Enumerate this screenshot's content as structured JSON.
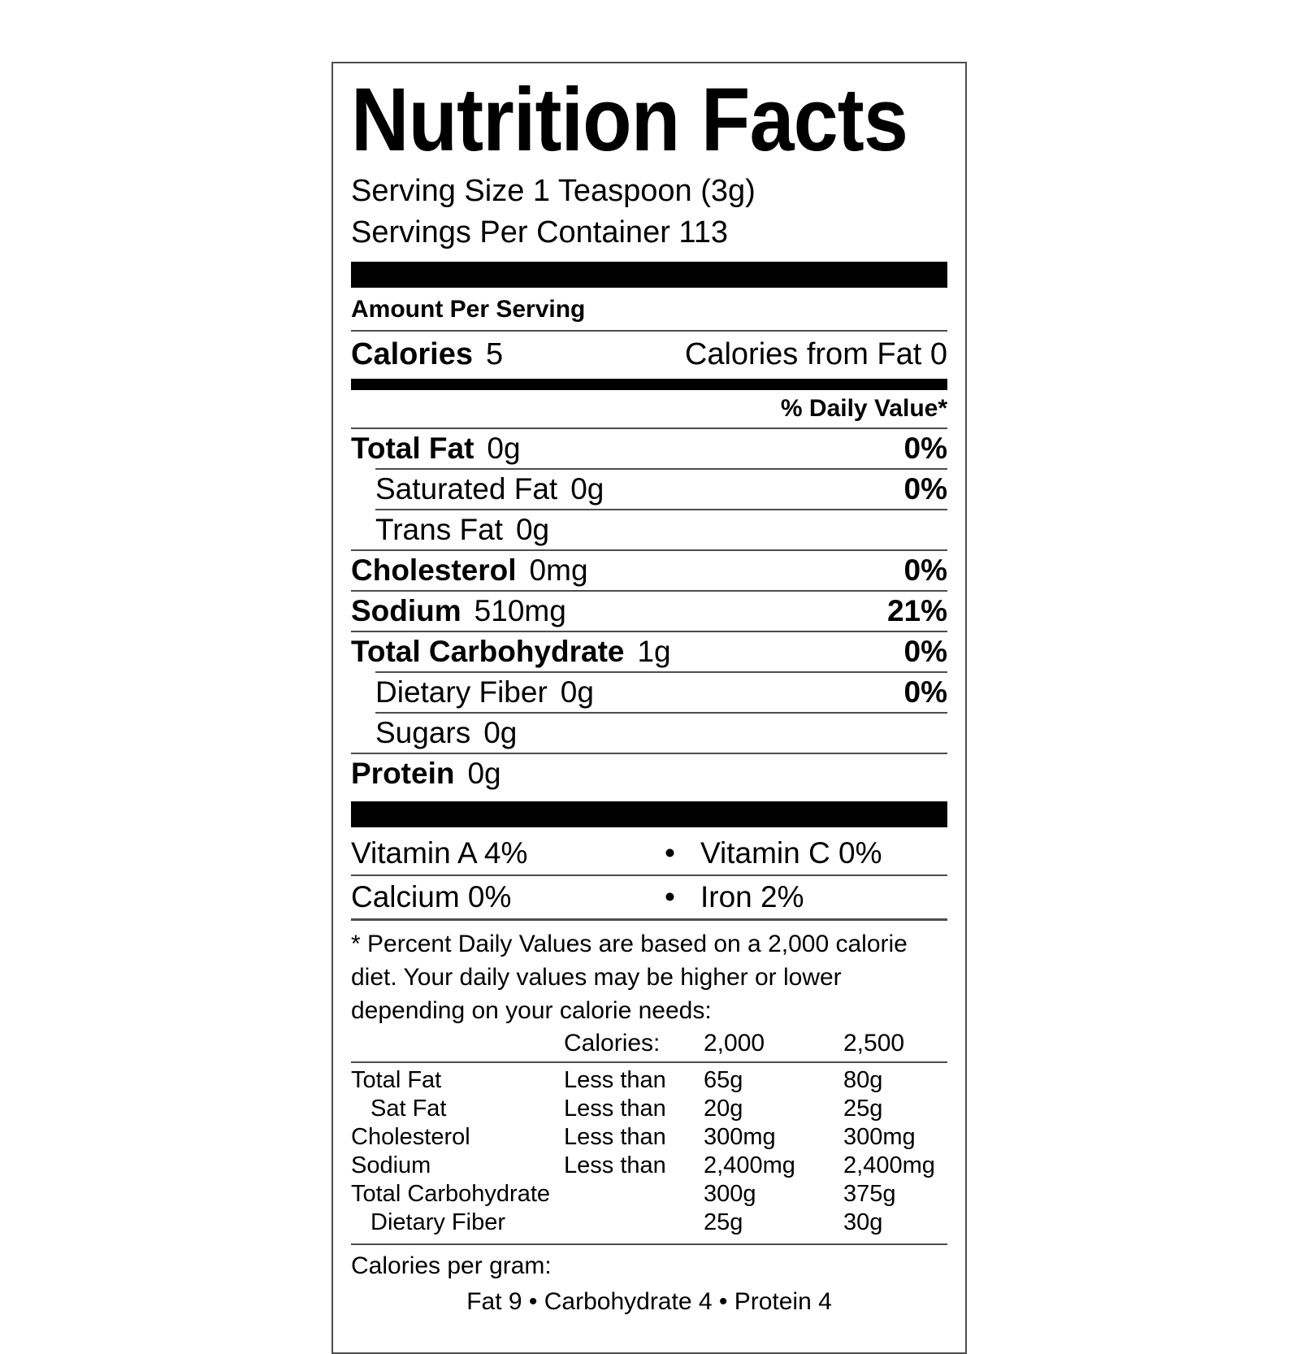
{
  "colors": {
    "text": "#000000",
    "rule": "#4d4d4d",
    "bar": "#000000",
    "background": "#ffffff"
  },
  "label": {
    "title": "Nutrition Facts",
    "serving_size": "Serving Size 1 Teaspoon (3g)",
    "servings_per_container": "Servings Per Container 113",
    "amount_per_serving": "Amount Per Serving",
    "calories_label": "Calories",
    "calories_value": "5",
    "calories_from_fat": "Calories from Fat 0",
    "daily_value_header": "% Daily Value*",
    "nutrients": [
      {
        "name": "Total Fat",
        "amount": "0g",
        "dv": "0%"
      },
      {
        "name": "Saturated Fat",
        "amount": "0g",
        "dv": "0%"
      },
      {
        "name": "Trans Fat",
        "amount": "0g",
        "dv": ""
      },
      {
        "name": "Cholesterol",
        "amount": "0mg",
        "dv": "0%"
      },
      {
        "name": "Sodium",
        "amount": "510mg",
        "dv": "21%"
      },
      {
        "name": "Total Carbohydrate",
        "amount": "1g",
        "dv": "0%"
      },
      {
        "name": "Dietary Fiber",
        "amount": "0g",
        "dv": "0%"
      },
      {
        "name": "Sugars",
        "amount": "0g",
        "dv": ""
      },
      {
        "name": "Protein",
        "amount": "0g",
        "dv": ""
      }
    ],
    "vitamins": [
      {
        "left": "Vitamin A 4%",
        "bullet": "•",
        "right": "Vitamin C 0%"
      },
      {
        "left": "Calcium 0%",
        "bullet": "•",
        "right": "Iron 2%"
      }
    ],
    "footnote": "* Percent Daily Values are based on a 2,000 calorie diet. Your daily values may be higher or lower depending on your calorie needs:",
    "dv_table": {
      "header": {
        "col2": "Calories:",
        "col3": "2,000",
        "col4": "2,500"
      },
      "rows": [
        {
          "name": "Total Fat",
          "qualifier": "Less than",
          "v2000": "65g",
          "v2500": "80g"
        },
        {
          "name": "Sat Fat",
          "qualifier": "Less than",
          "v2000": "20g",
          "v2500": "25g"
        },
        {
          "name": "Cholesterol",
          "qualifier": "Less than",
          "v2000": "300mg",
          "v2500": "300mg"
        },
        {
          "name": "Sodium",
          "qualifier": "Less than",
          "v2000": "2,400mg",
          "v2500": "2,400mg"
        },
        {
          "name": "Total Carbohydrate",
          "qualifier": "",
          "v2000": "300g",
          "v2500": "375g"
        },
        {
          "name": "Dietary Fiber",
          "qualifier": "",
          "v2000": "25g",
          "v2500": "30g"
        }
      ]
    },
    "calories_per_gram_label": "Calories per gram:",
    "calories_per_gram_values": "Fat 9 • Carbohydrate 4 • Protein 4"
  }
}
